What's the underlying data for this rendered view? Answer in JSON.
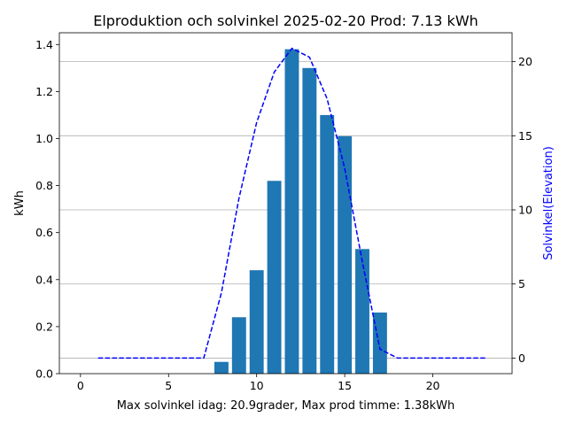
{
  "chart_data": {
    "type": "bar",
    "title": "Elproduktion och solvinkel 2025-02-20 Prod: 7.13 kWh",
    "xlabel": "Max solvinkel idag: 20.9grader, Max prod timme: 1.38kWh",
    "ylabel": "kWh",
    "y2label": "Solvinkel(Elevation)",
    "xlim": [
      -1.2,
      24.5
    ],
    "ylim": [
      0,
      1.45
    ],
    "y2lim": [
      -1.05,
      21.95
    ],
    "x_ticks": [
      0,
      5,
      10,
      15,
      20
    ],
    "y_ticks": [
      0.0,
      0.2,
      0.4,
      0.6,
      0.8,
      1.0,
      1.2,
      1.4
    ],
    "y2_ticks": [
      0,
      5,
      10,
      15,
      20
    ],
    "grid": "horizontal lines at right-axis ticks",
    "series": [
      {
        "name": "",
        "type": "bar",
        "axis": "left",
        "color": "#1f77b4",
        "x": [
          8,
          9,
          10,
          11,
          12,
          13,
          14,
          15,
          16,
          17
        ],
        "values": [
          0.05,
          0.24,
          0.44,
          0.82,
          1.38,
          1.3,
          1.1,
          1.01,
          0.53,
          0.26
        ]
      },
      {
        "name": "",
        "type": "line",
        "style": "dashed",
        "axis": "right",
        "color": "#0000ff",
        "x": [
          1,
          2,
          3,
          4,
          5,
          6,
          7,
          8,
          9,
          10,
          11,
          12,
          13,
          14,
          15,
          16,
          17,
          18,
          19,
          20,
          21,
          22,
          23
        ],
        "values": [
          0,
          0,
          0,
          0,
          0,
          0,
          0,
          4.4,
          10.8,
          15.9,
          19.3,
          20.9,
          20.3,
          17.5,
          12.8,
          6.5,
          0.6,
          0,
          0,
          0,
          0,
          0,
          0
        ]
      }
    ]
  }
}
